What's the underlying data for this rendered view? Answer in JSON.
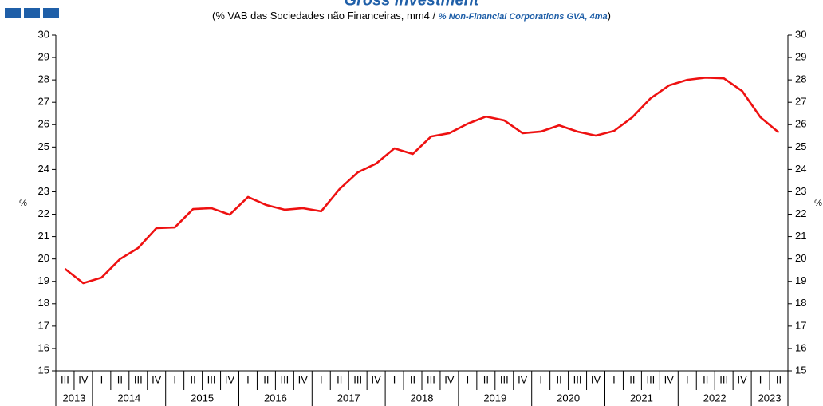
{
  "chart_data": {
    "type": "line",
    "title": "Gross investment",
    "subtitle": [
      "(% VAB das Sociedades não Financeiras, mm4 / ",
      "% Non-Financial Corporations GVA, 4ma",
      ")"
    ],
    "y_label": "%",
    "years": [
      {
        "label": "2013",
        "categories": [
          "III",
          "IV"
        ]
      },
      {
        "label": "2014",
        "categories": [
          "I",
          "II",
          "III",
          "IV"
        ]
      },
      {
        "label": "2015",
        "categories": [
          "I",
          "II",
          "III",
          "IV"
        ]
      },
      {
        "label": "2016",
        "categories": [
          "I",
          "II",
          "III",
          "IV"
        ]
      },
      {
        "label": "2017",
        "categories": [
          "I",
          "II",
          "III",
          "IV"
        ]
      },
      {
        "label": "2018",
        "categories": [
          "I",
          "II",
          "III",
          "IV"
        ]
      },
      {
        "label": "2019",
        "categories": [
          "I",
          "II",
          "III",
          "IV"
        ]
      },
      {
        "label": "2020",
        "categories": [
          "I",
          "II",
          "III",
          "IV"
        ]
      },
      {
        "label": "2021",
        "categories": [
          "I",
          "II",
          "III",
          "IV"
        ]
      },
      {
        "label": "2022",
        "categories": [
          "I",
          "II",
          "III",
          "IV"
        ]
      },
      {
        "label": "2023",
        "categories": [
          "I",
          "II"
        ]
      }
    ],
    "series": [
      {
        "name": "Gross investment",
        "color": "#ee1111",
        "values": [
          19.56,
          18.92,
          19.17,
          19.99,
          20.49,
          21.38,
          21.41,
          22.23,
          22.27,
          21.98,
          22.77,
          22.41,
          22.2,
          22.27,
          22.13,
          23.12,
          23.87,
          24.26,
          24.94,
          24.69,
          25.47,
          25.62,
          26.04,
          26.36,
          26.19,
          25.62,
          25.69,
          25.97,
          25.69,
          25.51,
          25.72,
          26.33,
          27.18,
          27.75,
          28.0,
          28.1,
          28.07,
          27.5,
          26.33,
          25.65
        ]
      }
    ],
    "ylim": [
      15,
      30
    ],
    "yticks": [
      15,
      16,
      17,
      18,
      19,
      20,
      21,
      22,
      23,
      24,
      25,
      26,
      27,
      28,
      29,
      30
    ],
    "grid": false
  }
}
